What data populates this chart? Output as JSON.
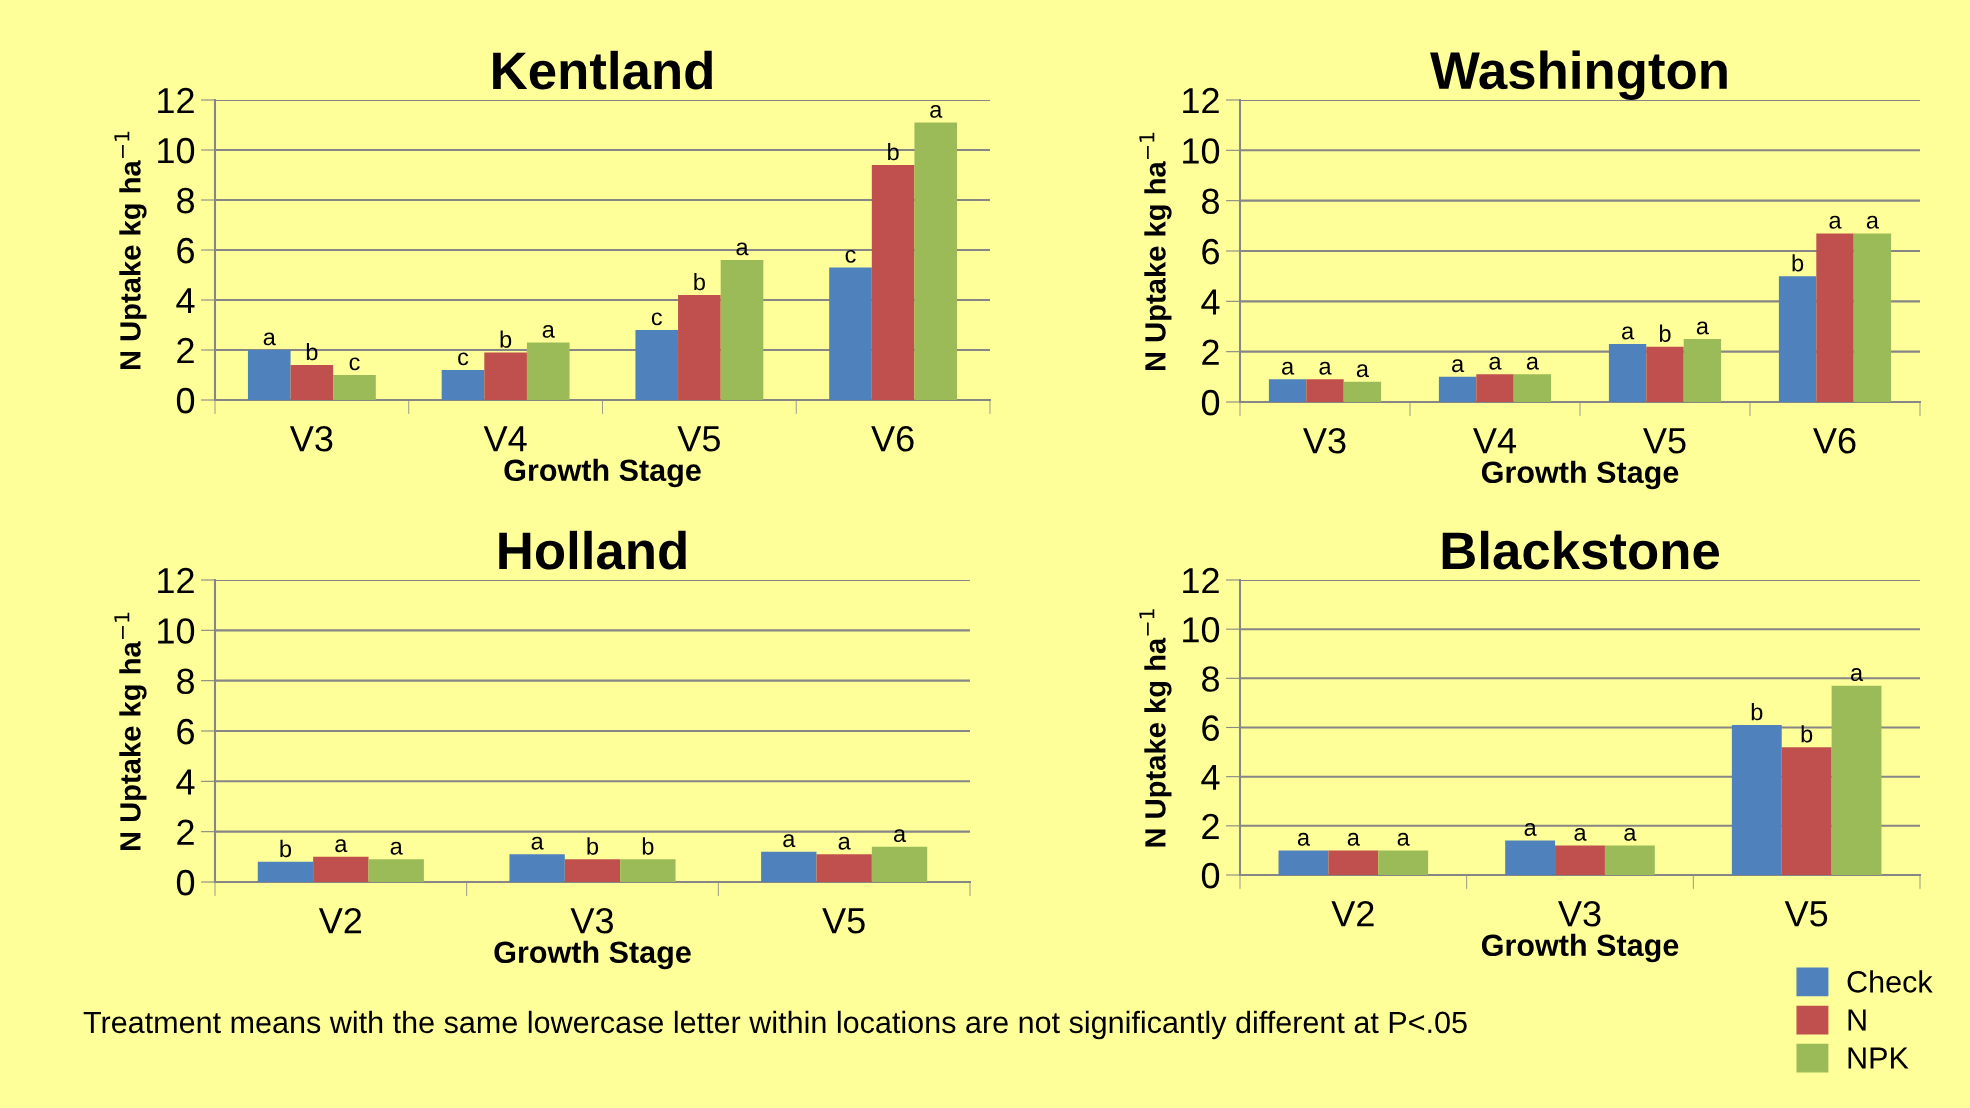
{
  "chart_data": [
    {
      "type": "bar",
      "title": "Kentland",
      "xlabel": "Growth Stage",
      "ylabel": "N Uptake kg ha$^{−1}$",
      "categories": [
        "V3",
        "V4",
        "V5",
        "V6"
      ],
      "ylim": [
        0,
        12
      ],
      "yticks": [
        0,
        2,
        4,
        6,
        8,
        10,
        12
      ],
      "grid": "y",
      "annotations": [
        "Treatment means with the same lowercase letter within locations are not significantly different at P<.05"
      ],
      "series": [
        {
          "color": "#4f81bd",
          "values": [
            2.0,
            1.2,
            2.8,
            5.3
          ],
          "value_labels": [
            "a",
            "c",
            "c",
            "c"
          ]
        },
        {
          "color": "#c0504d",
          "values": [
            1.4,
            1.9,
            4.2,
            9.4
          ],
          "value_labels": [
            "b",
            "b",
            "b",
            "b"
          ]
        },
        {
          "color": "#9bbb59",
          "values": [
            1.0,
            2.3,
            5.6,
            11.1
          ],
          "value_labels": [
            "c",
            "a",
            "a",
            "a"
          ]
        }
      ]
    },
    {
      "type": "bar",
      "title": "Washington",
      "xlabel": "Growth Stage",
      "ylabel": "N Uptake kg ha$^{−1}$",
      "categories": [
        "V3",
        "V4",
        "V5",
        "V6"
      ],
      "ylim": [
        0,
        12
      ],
      "yticks": [
        0,
        2,
        4,
        6,
        8,
        10,
        12
      ],
      "grid": "y",
      "series": [
        {
          "color": "#4f81bd",
          "values": [
            0.9,
            1.0,
            2.3,
            5.0
          ],
          "value_labels": [
            "a",
            "a",
            "a",
            "b"
          ]
        },
        {
          "color": "#c0504d",
          "values": [
            0.9,
            1.1,
            2.2,
            6.7
          ],
          "value_labels": [
            "a",
            "a",
            "b",
            "a"
          ]
        },
        {
          "color": "#9bbb59",
          "values": [
            0.8,
            1.1,
            2.5,
            6.7
          ],
          "value_labels": [
            "a",
            "a",
            "a",
            "a"
          ]
        }
      ]
    },
    {
      "type": "bar",
      "title": "Holland",
      "xlabel": "Growth Stage",
      "ylabel": "N Uptake kg ha$^{−1}$",
      "categories": [
        "V2",
        "V3",
        "V5"
      ],
      "ylim": [
        0,
        12
      ],
      "yticks": [
        0,
        2,
        4,
        6,
        8,
        10,
        12
      ],
      "grid": "y",
      "series": [
        {
          "color": "#4f81bd",
          "values": [
            0.8,
            1.1,
            1.2
          ],
          "value_labels": [
            "b",
            "a",
            "a"
          ]
        },
        {
          "color": "#c0504d",
          "values": [
            1.0,
            0.9,
            1.1
          ],
          "value_labels": [
            "a",
            "b",
            "a"
          ]
        },
        {
          "color": "#9bbb59",
          "values": [
            0.9,
            0.9,
            1.4
          ],
          "value_labels": [
            "a",
            "b",
            "a"
          ]
        }
      ]
    },
    {
      "type": "bar",
      "title": "Blackstone",
      "xlabel": "Growth Stage",
      "ylabel": "N Uptake kg ha$^{−1}$",
      "categories": [
        "V2",
        "V3",
        "V5"
      ],
      "ylim": [
        0,
        12
      ],
      "yticks": [
        0,
        2,
        4,
        6,
        8,
        10,
        12
      ],
      "grid": "y",
      "legend": "bottom right",
      "series": [
        {
          "name": "Check",
          "color": "#4f81bd",
          "values": [
            1.0,
            1.4,
            6.1
          ],
          "value_labels": [
            "a",
            "a",
            "b"
          ]
        },
        {
          "name": "N",
          "color": "#c0504d",
          "values": [
            1.0,
            1.2,
            5.2
          ],
          "value_labels": [
            "a",
            "a",
            "b"
          ]
        },
        {
          "name": "NPK",
          "color": "#9bbb59",
          "values": [
            1.0,
            1.2,
            7.7
          ],
          "value_labels": [
            "a",
            "a",
            "a"
          ]
        }
      ]
    }
  ]
}
